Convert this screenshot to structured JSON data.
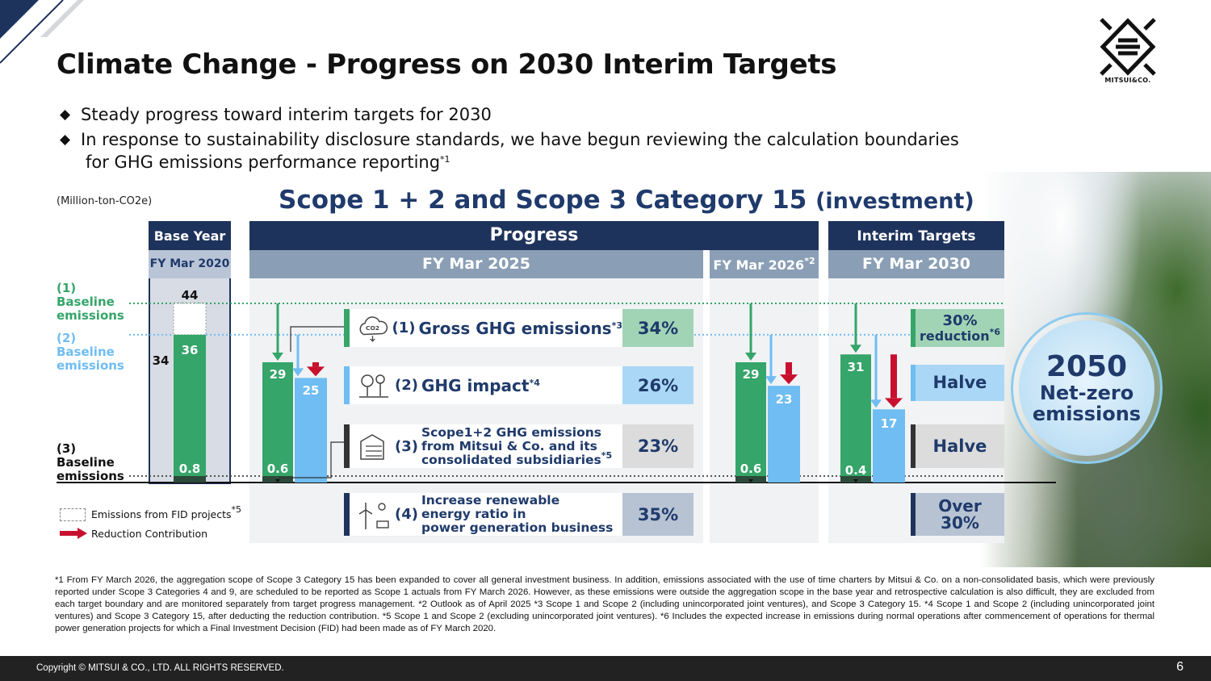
{
  "page": {
    "title": "Climate Change - Progress on 2030 Interim Targets",
    "bullets": [
      "Steady progress toward interim targets for 2030",
      "In response to sustainability disclosure standards, we have begun reviewing the calculation boundaries",
      "for GHG emissions performance reporting"
    ],
    "bullet_sup": "*1",
    "logo_text": "MITSUI&CO.",
    "colors": {
      "navy": "#1e335c",
      "green": "#35a56a",
      "blue": "#6fbdf2",
      "red": "#c8102e",
      "gray": "#8a9fb5"
    }
  },
  "chart_data": {
    "type": "bar",
    "title": "Scope 1 + 2 and Scope 3 Category 15",
    "title_suffix": "(investment)",
    "unit": "(Million-ton-CO2e)",
    "headers": {
      "base_year": "Base Year",
      "base_period": "FY Mar 2020",
      "progress": "Progress",
      "progress_period": "FY Mar 2025",
      "outlook_period": "FY Mar 2026",
      "outlook_sup": "*2",
      "interim": "Interim Targets",
      "interim_period": "FY Mar 2030"
    },
    "baselines": [
      {
        "id": "(1)",
        "label": "Baseline emissions",
        "value": 44,
        "color": "#35a56a"
      },
      {
        "id": "(2)",
        "label": "Baseline emissions",
        "value": 36,
        "color": "#6fbdf2"
      },
      {
        "id": "(3)",
        "label": "Baseline emissions",
        "value": 0.8,
        "color": "#111111"
      }
    ],
    "ylim": [
      0,
      50
    ],
    "base_year": {
      "gross": 36,
      "fid": 8,
      "gross_with_fid": 44,
      "impact_label": "34",
      "scope12": 0.8
    },
    "periods": [
      {
        "period": "FY Mar 2025",
        "gross": 29,
        "impact": 25,
        "scope12": 0.6
      },
      {
        "period": "FY Mar 2026",
        "gross": 29,
        "impact": 23,
        "scope12": 0.6
      },
      {
        "period": "FY Mar 2030",
        "gross": 31,
        "impact": 17,
        "scope12": 0.4
      }
    ],
    "labels": {
      "base_top": "44",
      "base_gross": "36",
      "base_side": "34",
      "base_scope12": "0.8",
      "p25_gross": "29",
      "p25_impact": "25",
      "p25_scope12": "0.6",
      "p26_gross": "29",
      "p26_impact": "23",
      "p26_scope12": "0.6",
      "p30_gross": "31",
      "p30_impact": "17",
      "p30_scope12": "0.4"
    },
    "legend": [
      {
        "label": "Emissions from FID projects",
        "sup": "*5"
      },
      {
        "label": "Reduction Contribution"
      }
    ]
  },
  "metrics": [
    {
      "num": "(1)",
      "label": "Gross GHG emissions",
      "sup": "*3",
      "progress": "34%",
      "target": "30%",
      "target2": "reduction",
      "target_sup": "*6",
      "color": "#35a56a",
      "pct_bg": "#a0d4b5"
    },
    {
      "num": "(2)",
      "label": "GHG impact",
      "sup": "*4",
      "progress": "26%",
      "target": "Halve",
      "color": "#6fbdf2",
      "pct_bg": "#aad7f5"
    },
    {
      "num": "(3)",
      "label1": "Scope1+2 GHG emissions",
      "label2": "from Mitsui & Co. and its",
      "label3": "consolidated subsidiaries",
      "sup": "*5",
      "progress": "23%",
      "target": "Halve",
      "color": "#333333",
      "pct_bg": "#dcdcdc"
    },
    {
      "num": "(4)",
      "label1": "Increase renewable",
      "label2": "energy ratio in",
      "label3": "power generation business",
      "progress": "35%",
      "target": "Over",
      "target2": "30%",
      "color": "#1e335c",
      "pct_bg": "#b7c3d3"
    }
  ],
  "netzero": {
    "year": "2050",
    "line1": "Net-zero",
    "line2": "emissions"
  },
  "footnotes": "*1 From FY March 2026, the aggregation scope of Scope 3 Category 15 has been expanded to cover all general investment business. In addition, emissions associated with the use of time charters by Mitsui & Co. on a non-consolidated basis, which were previously reported under Scope 3 Categories 4 and 9, are scheduled to be reported as Scope 1 actuals from FY March 2026. However, as these emissions were outside the aggregation scope in the base year and retrospective calculation is also difficult, they are excluded from each target boundary and are monitored separately from target progress management.  *2 Outlook as of April 2025  *3 Scope 1 and Scope 2 (including unincorporated joint ventures), and Scope 3 Category 15.  *4 Scope 1 and Scope 2 (including unincorporated joint ventures) and Scope 3 Category 15, after deducting the reduction contribution.  *5 Scope 1 and Scope 2 (excluding unincorporated joint ventures).  *6 Includes the expected increase in emissions during normal operations after commencement of operations for thermal power generation projects for which a Final Investment Decision (FID) had been made as of FY March 2020.",
  "footer": {
    "copyright": "Copyright © MITSUI & CO., LTD. ALL RIGHTS RESERVED.",
    "page_number": "6"
  }
}
